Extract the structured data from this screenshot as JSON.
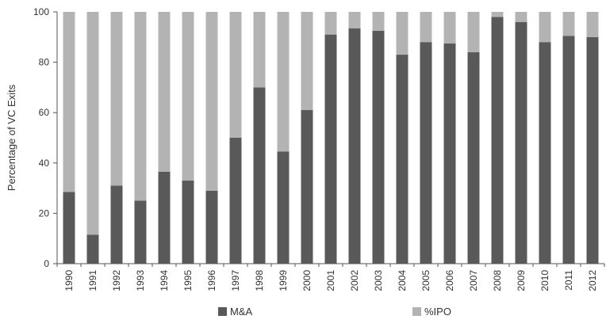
{
  "chart_data": {
    "type": "bar",
    "stacked": true,
    "title": "",
    "xlabel": "",
    "ylabel": "Percentage of VC Exits",
    "ylim": [
      0,
      100
    ],
    "yticks": [
      0,
      20,
      40,
      60,
      80,
      100
    ],
    "grid": false,
    "legend": "bottom",
    "categories": [
      "1990",
      "1991",
      "1992",
      "1993",
      "1994",
      "1995",
      "1996",
      "1997",
      "1998",
      "1999",
      "2000",
      "2001",
      "2002",
      "2003",
      "2004",
      "2005",
      "2006",
      "2007",
      "2008",
      "2009",
      "2010",
      "2011",
      "2012"
    ],
    "series": [
      {
        "name": "M&A",
        "color": "#595959",
        "values": [
          28.5,
          11.5,
          31,
          25,
          36.5,
          33,
          29,
          50,
          70,
          44.5,
          61,
          91,
          93.5,
          92.5,
          83,
          88,
          87.5,
          84,
          98,
          96,
          88,
          90.5,
          90
        ]
      },
      {
        "name": "%IPO",
        "color": "#b3b3b3",
        "values": [
          71.5,
          88.5,
          69,
          75,
          63.5,
          67,
          71,
          50,
          30,
          55.5,
          39,
          9,
          6.5,
          7.5,
          17,
          12,
          12.5,
          16,
          2,
          4,
          12,
          9.5,
          10
        ]
      }
    ]
  }
}
